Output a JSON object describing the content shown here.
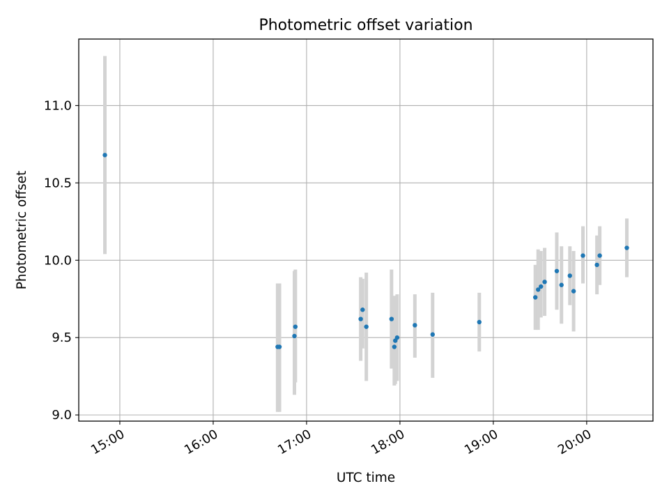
{
  "chart_data": {
    "type": "scatter",
    "title": "Photometric offset variation",
    "xlabel": "UTC time",
    "ylabel": "Photometric offset",
    "grid": true,
    "colors": {
      "point": "#1f77b4",
      "errorbar": "#d3d3d3",
      "grid": "#b0b0b0",
      "axis": "#000000"
    },
    "x_unit": "hours UTC",
    "xlim": [
      14.56,
      20.71
    ],
    "ylim": [
      8.96,
      11.43
    ],
    "xticks": [
      {
        "value": 15,
        "label": "15:00"
      },
      {
        "value": 16,
        "label": "16:00"
      },
      {
        "value": 17,
        "label": "17:00"
      },
      {
        "value": 18,
        "label": "18:00"
      },
      {
        "value": 19,
        "label": "19:00"
      },
      {
        "value": 20,
        "label": "20:00"
      }
    ],
    "yticks": [
      {
        "value": 9.0,
        "label": "9.0"
      },
      {
        "value": 9.5,
        "label": "9.5"
      },
      {
        "value": 10.0,
        "label": "10.0"
      },
      {
        "value": 10.5,
        "label": "10.5"
      },
      {
        "value": 11.0,
        "label": "11.0"
      }
    ],
    "points": [
      {
        "x": 14.84,
        "y": 10.68,
        "err_low": 10.04,
        "err_high": 11.32
      },
      {
        "x": 16.69,
        "y": 9.44,
        "err_low": 9.02,
        "err_high": 9.85
      },
      {
        "x": 16.71,
        "y": 9.44,
        "err_low": 9.02,
        "err_high": 9.85
      },
      {
        "x": 16.87,
        "y": 9.51,
        "err_low": 9.13,
        "err_high": 9.93
      },
      {
        "x": 16.88,
        "y": 9.57,
        "err_low": 9.21,
        "err_high": 9.94
      },
      {
        "x": 17.58,
        "y": 9.62,
        "err_low": 9.35,
        "err_high": 9.89
      },
      {
        "x": 17.6,
        "y": 9.68,
        "err_low": 9.43,
        "err_high": 9.88
      },
      {
        "x": 17.64,
        "y": 9.57,
        "err_low": 9.22,
        "err_high": 9.92
      },
      {
        "x": 17.91,
        "y": 9.62,
        "err_low": 9.3,
        "err_high": 9.94
      },
      {
        "x": 17.94,
        "y": 9.44,
        "err_low": 9.19,
        "err_high": 9.77
      },
      {
        "x": 17.95,
        "y": 9.48,
        "err_low": 9.2,
        "err_high": 9.76
      },
      {
        "x": 17.97,
        "y": 9.5,
        "err_low": 9.22,
        "err_high": 9.78
      },
      {
        "x": 18.16,
        "y": 9.58,
        "err_low": 9.37,
        "err_high": 9.78
      },
      {
        "x": 18.35,
        "y": 9.52,
        "err_low": 9.24,
        "err_high": 9.79
      },
      {
        "x": 18.85,
        "y": 9.6,
        "err_low": 9.41,
        "err_high": 9.79
      },
      {
        "x": 19.45,
        "y": 9.76,
        "err_low": 9.55,
        "err_high": 9.97
      },
      {
        "x": 19.48,
        "y": 9.81,
        "err_low": 9.55,
        "err_high": 10.07
      },
      {
        "x": 19.51,
        "y": 9.83,
        "err_low": 9.63,
        "err_high": 10.06
      },
      {
        "x": 19.55,
        "y": 9.86,
        "err_low": 9.64,
        "err_high": 10.08
      },
      {
        "x": 19.68,
        "y": 9.93,
        "err_low": 9.68,
        "err_high": 10.18
      },
      {
        "x": 19.73,
        "y": 9.84,
        "err_low": 9.59,
        "err_high": 10.09
      },
      {
        "x": 19.82,
        "y": 9.9,
        "err_low": 9.71,
        "err_high": 10.09
      },
      {
        "x": 19.86,
        "y": 9.8,
        "err_low": 9.54,
        "err_high": 10.06
      },
      {
        "x": 19.96,
        "y": 10.03,
        "err_low": 9.85,
        "err_high": 10.22
      },
      {
        "x": 20.11,
        "y": 9.97,
        "err_low": 9.78,
        "err_high": 10.16
      },
      {
        "x": 20.14,
        "y": 10.03,
        "err_low": 9.84,
        "err_high": 10.22
      },
      {
        "x": 20.43,
        "y": 10.08,
        "err_low": 9.89,
        "err_high": 10.27
      }
    ]
  }
}
